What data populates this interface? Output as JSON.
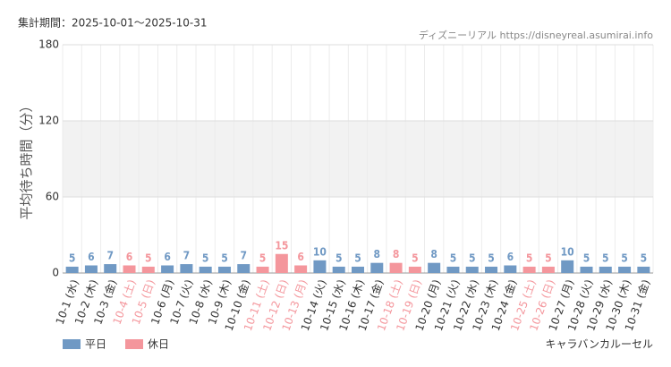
{
  "chart_data": {
    "type": "bar",
    "period": "集計期間：2025-10-01～2025-10-31",
    "source": "ディズニーリアル https://disneyreal.asumirai.info",
    "y_label": "平均待ち時間（分）",
    "attraction": "キャラバンカルーセル",
    "categories": [
      "10-1 (水)",
      "10-2 (木)",
      "10-3 (金)",
      "10-4 (土)",
      "10-5 (日)",
      "10-6 (月)",
      "10-7 (火)",
      "10-8 (水)",
      "10-9 (木)",
      "10-10 (金)",
      "10-11 (土)",
      "10-12 (日)",
      "10-13 (月)",
      "10-14 (火)",
      "10-15 (水)",
      "10-16 (木)",
      "10-17 (金)",
      "10-18 (土)",
      "10-19 (日)",
      "10-20 (月)",
      "10-21 (火)",
      "10-22 (水)",
      "10-23 (木)",
      "10-24 (金)",
      "10-25 (土)",
      "10-26 (日)",
      "10-27 (月)",
      "10-28 (火)",
      "10-29 (水)",
      "10-30 (木)",
      "10-31 (金)"
    ],
    "series": [
      {
        "name": "平日",
        "color": "#7099c4",
        "values": [
          5,
          6,
          7,
          null,
          null,
          6,
          7,
          5,
          5,
          7,
          null,
          null,
          null,
          10,
          5,
          5,
          8,
          null,
          null,
          8,
          5,
          5,
          5,
          6,
          null,
          null,
          10,
          5,
          5,
          5,
          5
        ]
      },
      {
        "name": "休日",
        "color": "#f4969c",
        "values": [
          null,
          null,
          null,
          6,
          5,
          null,
          null,
          null,
          null,
          null,
          5,
          15,
          6,
          null,
          null,
          null,
          null,
          8,
          5,
          null,
          null,
          null,
          null,
          null,
          5,
          5,
          null,
          null,
          null,
          null,
          null
        ]
      }
    ],
    "ylim": [
      0,
      180
    ],
    "yticks": [
      0,
      60,
      120,
      180
    ],
    "grid": true
  }
}
